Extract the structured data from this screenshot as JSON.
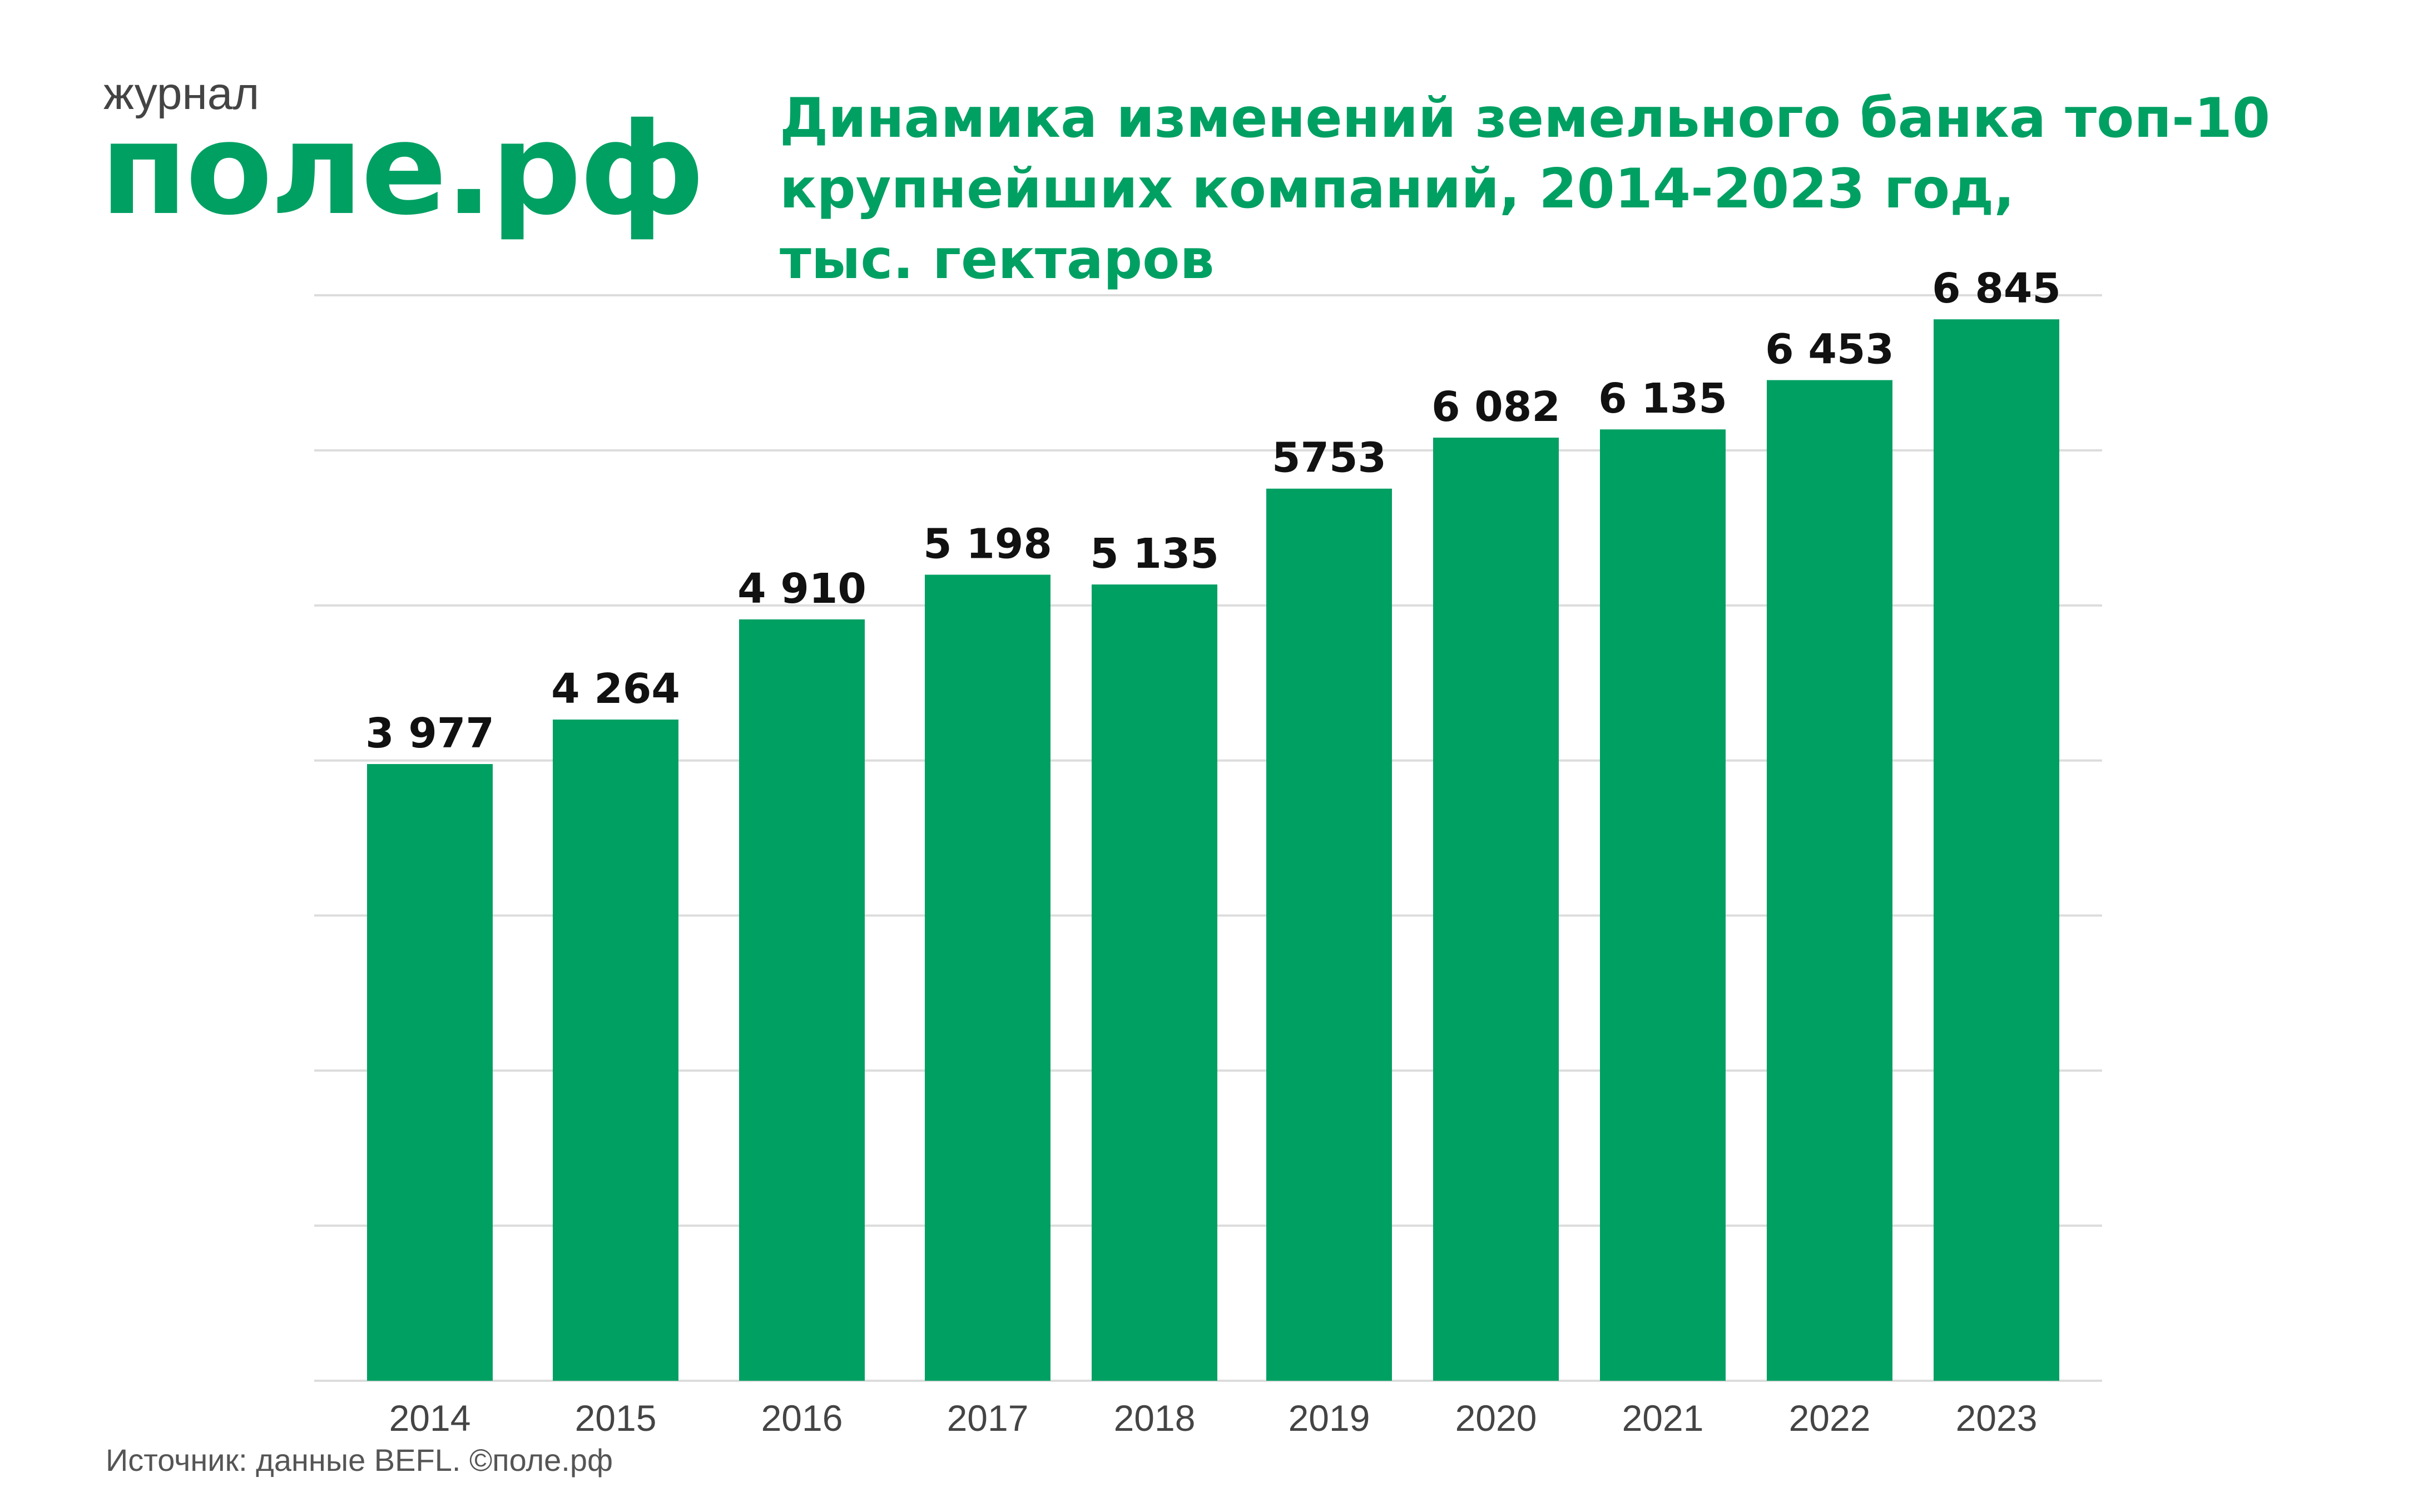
{
  "logo": {
    "prefix": "журнал",
    "name": "поле.рф"
  },
  "source_note": "Источник: данные BEFL. ©поле.рф",
  "colors": {
    "bar": "#00a063",
    "title": "#00a063",
    "grid": "#dcdcdc",
    "label": "#111111",
    "tick": "#444444"
  },
  "chart_data": {
    "type": "bar",
    "title": "Динамика изменений земельного банка топ-10\nкрупнейших компаний, 2014-2023 год,\nтыс. гектаров",
    "xlabel": "",
    "ylabel": "",
    "categories": [
      "2014",
      "2015",
      "2016",
      "2017",
      "2018",
      "2019",
      "2020",
      "2021",
      "2022",
      "2023"
    ],
    "values": [
      3977,
      4264,
      4910,
      5198,
      5135,
      5753,
      6082,
      6135,
      6453,
      6845
    ],
    "value_labels": [
      "3 977",
      "4 264",
      "4 910",
      "5 198",
      "5 135",
      "5753",
      "6 082",
      "6 135",
      "6 453",
      "6 845"
    ],
    "ylim": [
      0,
      7000
    ],
    "grid": true,
    "legend": "none"
  }
}
